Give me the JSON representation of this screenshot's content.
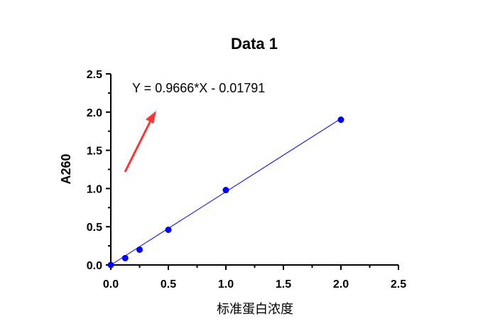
{
  "chart_data": {
    "type": "scatter",
    "title": "Data 1",
    "xlabel": "标准蛋白浓度",
    "ylabel": "A260",
    "xlim": [
      0,
      2.5
    ],
    "ylim": [
      0,
      2.5
    ],
    "xticks": [
      "0.0",
      "0.5",
      "1.0",
      "1.5",
      "2.0",
      "2.5"
    ],
    "yticks": [
      "0.0",
      "0.5",
      "1.0",
      "1.5",
      "2.0",
      "2.5"
    ],
    "grid": false,
    "series": [
      {
        "color": "#0000ff",
        "points": [
          {
            "x": 0.0,
            "y": 0.0
          },
          {
            "x": 0.125,
            "y": 0.09
          },
          {
            "x": 0.25,
            "y": 0.2
          },
          {
            "x": 0.5,
            "y": 0.46
          },
          {
            "x": 1.0,
            "y": 0.98
          },
          {
            "x": 2.0,
            "y": 1.9
          }
        ]
      }
    ],
    "fit": {
      "slope": 0.9666,
      "intercept": -0.01791,
      "x_range": [
        0,
        2.0
      ],
      "color": "#0000ff",
      "equation": "Y = 0.9666*X - 0.01791"
    },
    "annotation_arrow_color": "#ff3333"
  }
}
